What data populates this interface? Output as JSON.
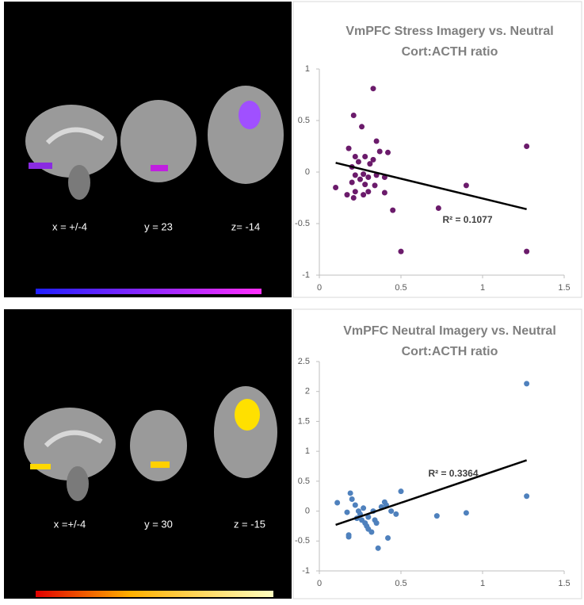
{
  "panels": [
    {
      "labels": [
        "x = +/-4",
        "y = 23",
        "z= -14"
      ]
    },
    {
      "labels": [
        "x =+/-4",
        "y = 30",
        "z = -15"
      ]
    }
  ],
  "chart_data": [
    {
      "type": "scatter",
      "title": "VmPFC Stress Imagery vs. Neutral",
      "subtitle": "Cort:ACTH ratio",
      "color": "#6b1b6b",
      "xlim": [
        0,
        1.5
      ],
      "xticks": [
        0,
        0.5,
        1,
        1.5
      ],
      "ylim": [
        -1,
        1
      ],
      "yticks": [
        -1,
        -0.5,
        0,
        0.5,
        1
      ],
      "x": [
        0.33,
        0.21,
        0.26,
        0.18,
        0.28,
        0.35,
        0.37,
        0.42,
        0.22,
        0.2,
        0.24,
        0.31,
        0.33,
        0.27,
        0.22,
        0.25,
        0.3,
        0.35,
        0.4,
        0.2,
        0.28,
        0.34,
        0.1,
        0.22,
        0.17,
        0.27,
        0.21,
        0.3,
        0.4,
        0.45,
        0.5,
        0.73,
        0.9,
        1.27,
        1.27
      ],
      "values": [
        0.81,
        0.55,
        0.44,
        0.23,
        0.15,
        0.3,
        0.2,
        0.19,
        0.15,
        0.05,
        0.1,
        0.08,
        0.12,
        -0.02,
        -0.03,
        -0.07,
        -0.05,
        -0.03,
        -0.05,
        -0.1,
        -0.12,
        -0.13,
        -0.15,
        -0.19,
        -0.22,
        -0.22,
        -0.25,
        -0.19,
        -0.2,
        -0.37,
        -0.77,
        -0.35,
        -0.13,
        0.25,
        -0.77
      ],
      "trendline": {
        "x": [
          0.1,
          1.27
        ],
        "y": [
          0.09,
          -0.36
        ],
        "color": "#000000"
      },
      "annotation": "R² = 0.1077"
    },
    {
      "type": "scatter",
      "title": "VmPFC Neutral Imagery vs. Neutral",
      "subtitle": "Cort:ACTH ratio",
      "color": "#4f81bd",
      "xlim": [
        0,
        1.5
      ],
      "xticks": [
        0,
        0.5,
        1,
        1.5
      ],
      "ylim": [
        -1,
        2.5
      ],
      "yticks": [
        -1,
        -0.5,
        0,
        0.5,
        1,
        1.5,
        2,
        2.5
      ],
      "x": [
        0.11,
        0.17,
        0.19,
        0.2,
        0.18,
        0.18,
        0.22,
        0.23,
        0.25,
        0.26,
        0.27,
        0.28,
        0.3,
        0.3,
        0.32,
        0.33,
        0.34,
        0.35,
        0.36,
        0.38,
        0.4,
        0.41,
        0.42,
        0.44,
        0.47,
        0.5,
        0.24,
        0.29,
        0.72,
        0.9,
        1.27,
        1.27
      ],
      "values": [
        0.14,
        -0.02,
        0.3,
        0.2,
        -0.4,
        -0.43,
        0.1,
        -0.12,
        -0.05,
        -0.15,
        0.05,
        -0.2,
        -0.1,
        -0.3,
        -0.35,
        0.0,
        -0.15,
        -0.2,
        -0.62,
        0.07,
        0.15,
        0.1,
        -0.45,
        0.0,
        -0.05,
        0.33,
        0.0,
        -0.25,
        -0.08,
        -0.03,
        2.13,
        0.25
      ],
      "trendline": {
        "x": [
          0.1,
          1.27
        ],
        "y": [
          -0.23,
          0.85
        ],
        "color": "#000000"
      },
      "annotation": "R² = 0.3364"
    }
  ]
}
